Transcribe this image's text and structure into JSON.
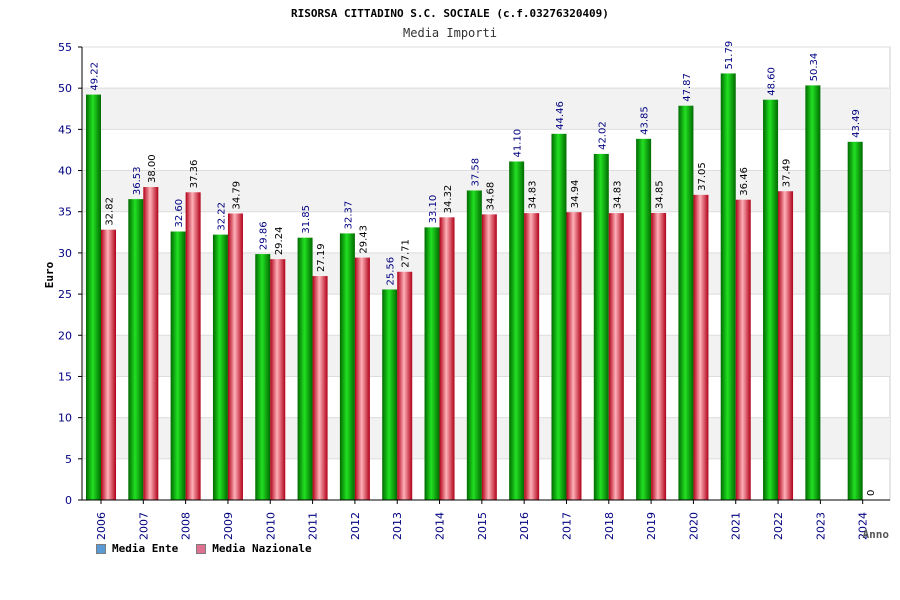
{
  "chart_data": {
    "type": "bar",
    "title": "RISORSA CITTADINO S.C. SOCIALE (c.f.03276320409)",
    "subtitle": "Media Importi",
    "xlabel": "Anno",
    "ylabel": "Euro",
    "ylim": [
      0,
      55
    ],
    "yticks": [
      "0",
      "5",
      "10",
      "15",
      "20",
      "25",
      "30",
      "35",
      "40",
      "45",
      "50",
      "55"
    ],
    "grid": true,
    "legend_position": "bottom-left",
    "categories": [
      "2006",
      "2007",
      "2008",
      "2009",
      "2010",
      "2011",
      "2012",
      "2013",
      "2014",
      "2015",
      "2016",
      "2017",
      "2018",
      "2019",
      "2020",
      "2021",
      "2022",
      "2023",
      "2024"
    ],
    "series": [
      {
        "name": "Media Ente",
        "color": "#00b000",
        "legend_color": "#5b9bd5",
        "values": [
          49.22,
          36.53,
          32.6,
          32.22,
          29.86,
          31.85,
          32.37,
          25.56,
          33.1,
          37.58,
          41.1,
          44.46,
          42.02,
          43.85,
          47.87,
          51.79,
          48.6,
          50.34,
          43.49
        ],
        "labels": [
          "49.22",
          "36.53",
          "32.60",
          "32.22",
          "29.86",
          "31.85",
          "32.37",
          "25.56",
          "33.10",
          "37.58",
          "41.10",
          "44.46",
          "42.02",
          "43.85",
          "47.87",
          "51.79",
          "48.60",
          "50.34",
          "43.49"
        ]
      },
      {
        "name": "Media Nazionale",
        "color": "#e03040",
        "legend_color": "#e07090",
        "values": [
          32.82,
          38.0,
          37.36,
          34.79,
          29.24,
          27.19,
          29.43,
          27.71,
          34.32,
          34.68,
          34.83,
          34.94,
          34.83,
          34.85,
          37.05,
          36.46,
          37.49,
          null,
          null
        ],
        "labels": [
          "32.82",
          "38.00",
          "37.36",
          "34.79",
          "29.24",
          "27.19",
          "29.43",
          "27.71",
          "34.32",
          "34.68",
          "34.83",
          "34.94",
          "34.83",
          "34.85",
          "37.05",
          "36.46",
          "37.49",
          "",
          ""
        ]
      }
    ],
    "extra_labels": [
      {
        "category": "2024",
        "text": "0"
      }
    ]
  }
}
